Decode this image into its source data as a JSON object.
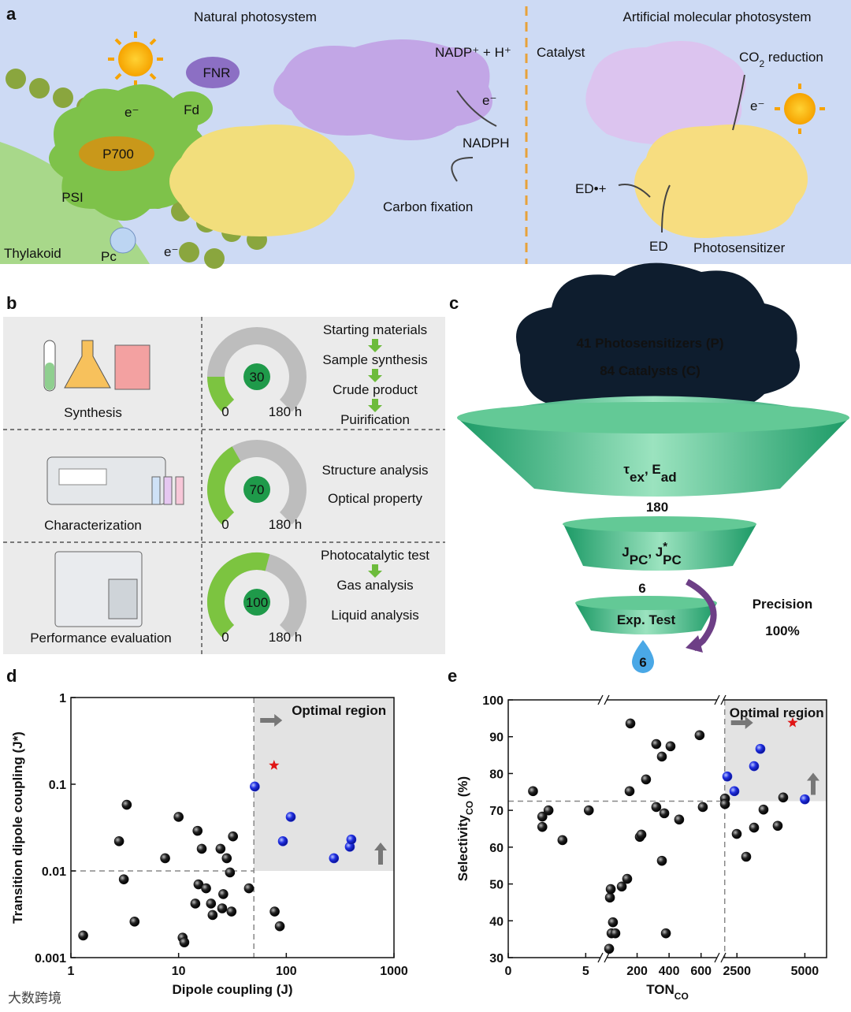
{
  "panel_a": {
    "letter": "a",
    "natural_title": "Natural photosystem",
    "artificial_title": "Artificial molecular photosystem",
    "fnr": "FNR",
    "fd": "Fd",
    "p700": "P700",
    "psi": "PSI",
    "thylakoid": "Thylakoid",
    "pc": "Pc",
    "nadp": "NADP⁺ + H⁺",
    "nadph": "NADPH",
    "carbon": "Carbon fixation",
    "catalyst": "Catalyst",
    "co2_main": "CO",
    "co2_sub": "2",
    "co2_tail": " reduction",
    "ed_plus": "ED•+",
    "ed": "ED",
    "photosensitizer": "Photosensitizer",
    "electron": "e⁻"
  },
  "panel_b": {
    "letter": "b",
    "gauge_min": 0,
    "gauge_max": {
      "value": 180,
      "label": "180 h"
    },
    "rows": [
      {
        "name": "Synthesis",
        "value": 30,
        "steps": [
          "Starting materials",
          "Sample synthesis",
          "Crude product",
          "Puirification"
        ]
      },
      {
        "name": "Characterization",
        "value": 70,
        "steps": [
          "Structure analysis",
          "Optical property"
        ]
      },
      {
        "name": "Performance evaluation",
        "value": 100,
        "steps": [
          "Photocatalytic test",
          "Gas analysis",
          "Liquid analysis"
        ]
      }
    ]
  },
  "panel_c": {
    "letter": "c",
    "cloud": [
      "41 Photosensitizers (P)",
      "84 Catalysts (C)"
    ],
    "filter1": {
      "a": "τ",
      "a_sub": "ex",
      "b": ", E",
      "b_sub": "ad"
    },
    "count1": 180,
    "filter2": {
      "a": "J",
      "a_sub": "PC",
      "b": ", J",
      "b_sup": "*",
      "b_sub": "PC"
    },
    "count2": 6,
    "filter3": "Exp. Test",
    "count3": 6,
    "precision": "Precision",
    "precision_value": "100%"
  },
  "chart_data": [
    {
      "type": "scatter",
      "letter": "d",
      "xlabel": "Dipole coupling (J)",
      "ylabel": "Transition dipole coupling (J*)",
      "xscale": "log",
      "yscale": "log",
      "xlim": [
        1,
        1000
      ],
      "ylim": [
        0.001,
        1
      ],
      "xticks": [
        1,
        10,
        100,
        1000
      ],
      "yticks": [
        0.001,
        0.01,
        0.1,
        1
      ],
      "region": {
        "label": "Optimal region",
        "x": 50,
        "y": 0.01
      },
      "series": [
        {
          "color": "#111111",
          "marker": "circle",
          "x": [
            1.3,
            2.8,
            3.1,
            3.3,
            3.9,
            10,
            7.5,
            10.9,
            11.3,
            15,
            15.3,
            14.3,
            18,
            16.4,
            20,
            20.7,
            24.5,
            26,
            25.4,
            28,
            30,
            31,
            32,
            45,
            78,
            87
          ],
          "values": [
            0.0018,
            0.022,
            0.008,
            0.058,
            0.0026,
            0.042,
            0.014,
            0.0017,
            0.0015,
            0.029,
            0.007,
            0.0042,
            0.0063,
            0.018,
            0.0042,
            0.0031,
            0.018,
            0.0054,
            0.0037,
            0.014,
            0.0096,
            0.0034,
            0.025,
            0.0063,
            0.0034,
            0.0023
          ]
        },
        {
          "color": "#1f2ee0",
          "marker": "circle",
          "x": [
            51,
            93,
            110,
            277,
            389,
            402
          ],
          "values": [
            0.094,
            0.022,
            0.042,
            0.014,
            0.019,
            0.023
          ]
        },
        {
          "color": "#e01515",
          "marker": "star",
          "x": [
            77
          ],
          "values": [
            0.165
          ]
        }
      ]
    },
    {
      "type": "scatter",
      "letter": "e",
      "xlabel": {
        "main": "TON",
        "sub": "CO"
      },
      "ylabel": {
        "main": "Selectivity",
        "sub": "CO",
        "tail": " (%)"
      },
      "ylim": [
        30,
        100
      ],
      "yticks": [
        30,
        40,
        50,
        60,
        70,
        80,
        90,
        100
      ],
      "xsegments": [
        {
          "xlim": [
            0,
            6
          ],
          "xticks": [
            0,
            5
          ]
        },
        {
          "xlim": [
            10,
            700
          ],
          "xticks": [
            200,
            400,
            600
          ]
        },
        {
          "xlim": [
            2000,
            5800
          ],
          "xticks": [
            2500,
            5000
          ]
        }
      ],
      "region": {
        "label": "Optimal region",
        "x": 2050,
        "y": 72.5
      },
      "series": [
        {
          "color": "#111111",
          "marker": "circle",
          "x": [
            1.6,
            2.2,
            2.2,
            2.6,
            3.5,
            5.2,
            25,
            30,
            35,
            40,
            49,
            64,
            104,
            138,
            153,
            158,
            217,
            227,
            256,
            320,
            320,
            355,
            355,
            370,
            380,
            409,
            463,
            591,
            611,
            2060,
            2060,
            2493,
            2841,
            3131,
            3479,
            4001,
            4204
          ],
          "values": [
            75.2,
            68.3,
            65.5,
            70,
            61.9,
            70,
            32.4,
            46.3,
            48.6,
            36.6,
            39.6,
            36.6,
            49.3,
            51.4,
            75.2,
            93.6,
            62.8,
            63.4,
            78.4,
            88,
            70.9,
            84.6,
            56.3,
            69.2,
            36.6,
            87.4,
            67.5,
            90.4,
            70.9,
            73.2,
            71.7,
            63.6,
            57.4,
            65.3,
            70.2,
            65.8,
            73.5
          ]
        },
        {
          "color": "#1f2ee0",
          "marker": "circle",
          "x": [
            2145,
            2406,
            3131,
            3363,
            5000
          ],
          "values": [
            79.2,
            75.2,
            82,
            86.7,
            73
          ]
        },
        {
          "color": "#e01515",
          "marker": "star",
          "x": [
            4552
          ],
          "values": [
            93.8
          ]
        }
      ]
    }
  ],
  "watermark": "大数跨境"
}
